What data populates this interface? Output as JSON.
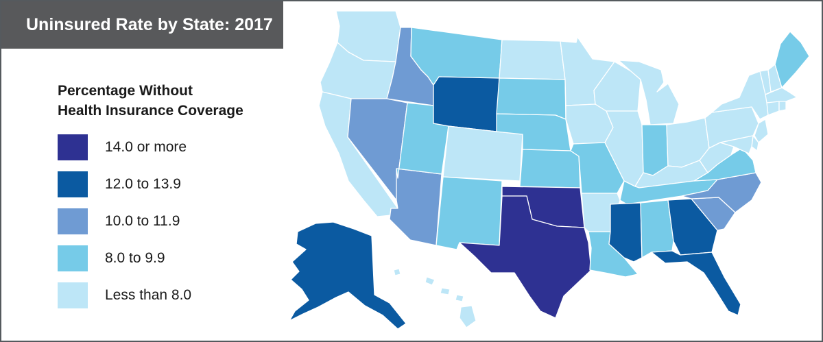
{
  "title": "Uninsured Rate by State: 2017",
  "legend": {
    "title_line1": "Percentage Without",
    "title_line2": "Health Insurance Coverage",
    "items": [
      {
        "label": "14.0 or more",
        "color": "#2e3192"
      },
      {
        "label": "12.0 to 13.9",
        "color": "#0b5aa1"
      },
      {
        "label": "10.0 to 11.9",
        "color": "#6f9bd3"
      },
      {
        "label": "8.0 to 9.9",
        "color": "#76cbe8"
      },
      {
        "label": "Less than 8.0",
        "color": "#bde6f7"
      }
    ]
  },
  "states": [
    {
      "name": "Washington",
      "category": 4
    },
    {
      "name": "Oregon",
      "category": 4
    },
    {
      "name": "California",
      "category": 4
    },
    {
      "name": "Idaho",
      "category": 2
    },
    {
      "name": "Nevada",
      "category": 2
    },
    {
      "name": "Arizona",
      "category": 2
    },
    {
      "name": "Utah",
      "category": 3
    },
    {
      "name": "Montana",
      "category": 3
    },
    {
      "name": "Wyoming",
      "category": 1
    },
    {
      "name": "Colorado",
      "category": 4
    },
    {
      "name": "New Mexico",
      "category": 3
    },
    {
      "name": "North Dakota",
      "category": 4
    },
    {
      "name": "South Dakota",
      "category": 3
    },
    {
      "name": "Nebraska",
      "category": 3
    },
    {
      "name": "Kansas",
      "category": 3
    },
    {
      "name": "Oklahoma",
      "category": 0
    },
    {
      "name": "Texas",
      "category": 0
    },
    {
      "name": "Minnesota",
      "category": 4
    },
    {
      "name": "Iowa",
      "category": 4
    },
    {
      "name": "Missouri",
      "category": 3
    },
    {
      "name": "Arkansas",
      "category": 4
    },
    {
      "name": "Louisiana",
      "category": 3
    },
    {
      "name": "Wisconsin",
      "category": 4
    },
    {
      "name": "Illinois",
      "category": 4
    },
    {
      "name": "Michigan",
      "category": 4
    },
    {
      "name": "Indiana",
      "category": 3
    },
    {
      "name": "Ohio",
      "category": 4
    },
    {
      "name": "Kentucky",
      "category": 4
    },
    {
      "name": "Tennessee",
      "category": 3
    },
    {
      "name": "Mississippi",
      "category": 1
    },
    {
      "name": "Alabama",
      "category": 3
    },
    {
      "name": "Georgia",
      "category": 1
    },
    {
      "name": "Florida",
      "category": 1
    },
    {
      "name": "South Carolina",
      "category": 2
    },
    {
      "name": "North Carolina",
      "category": 2
    },
    {
      "name": "Virginia",
      "category": 3
    },
    {
      "name": "West Virginia",
      "category": 4
    },
    {
      "name": "Pennsylvania",
      "category": 4
    },
    {
      "name": "New York",
      "category": 4
    },
    {
      "name": "Vermont",
      "category": 4
    },
    {
      "name": "New Hampshire",
      "category": 4
    },
    {
      "name": "Maine",
      "category": 3
    },
    {
      "name": "Massachusetts",
      "category": 4
    },
    {
      "name": "Connecticut",
      "category": 4
    },
    {
      "name": "Rhode Island",
      "category": 4
    },
    {
      "name": "New Jersey",
      "category": 4
    },
    {
      "name": "Delaware",
      "category": 4
    },
    {
      "name": "Maryland",
      "category": 4
    },
    {
      "name": "Alaska",
      "category": 1
    },
    {
      "name": "Hawaii",
      "category": 4
    }
  ]
}
